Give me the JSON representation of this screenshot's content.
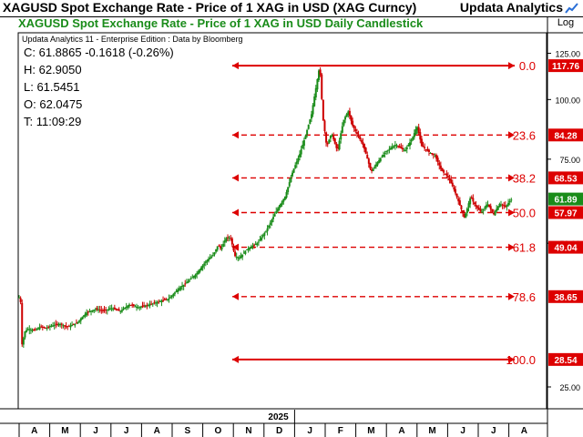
{
  "header": {
    "title": "XAGUSD Spot Exchange Rate - Price of 1 XAG in USD (XAG Curncy)",
    "brand": "Updata Analytics",
    "log_label": "Log"
  },
  "info": {
    "edition": "Updata Analytics 11 - Enterprise Edition : Data by Bloomberg",
    "close": "C: 61.8865  -0.1618 (-0.26%)",
    "high": "H: 62.9050",
    "low": "L: 61.5451",
    "open": "O: 62.0475",
    "time": "T: 11:09:29"
  },
  "colors": {
    "up": "#1a8c1a",
    "down": "#cc0000",
    "fib": "#dd0000",
    "current_tag": "#1a8c1a"
  },
  "chart_data": {
    "type": "candlestick",
    "title": "XAGUSD Spot Exchange Rate - Price of 1 XAG in USD Daily Candlestick",
    "scale": "log",
    "y_ticks": [
      125,
      100,
      75,
      50,
      25
    ],
    "y_tick_labels": [
      "125.00",
      "100.00",
      "75.00",
      "50.00",
      "25.00"
    ],
    "ylim": [
      22.5,
      138
    ],
    "x_month_labels": [
      "A",
      "M",
      "J",
      "J",
      "A",
      "S",
      "O",
      "N",
      "D",
      "J",
      "F",
      "M",
      "A",
      "M",
      "J",
      "J",
      "A"
    ],
    "year_label": "2025",
    "current_price": 61.89,
    "current_price_label": "61.89",
    "price_path": [
      [
        0,
        38.5
      ],
      [
        0.05,
        37.6
      ],
      [
        0.1,
        30.1
      ],
      [
        0.17,
        32.6
      ],
      [
        0.3,
        33.1
      ],
      [
        0.5,
        32.8
      ],
      [
        0.7,
        33.4
      ],
      [
        0.9,
        33.2
      ],
      [
        1.0,
        33.5
      ],
      [
        1.3,
        33.9
      ],
      [
        1.6,
        33.4
      ],
      [
        1.9,
        34.1
      ],
      [
        2.2,
        35.8
      ],
      [
        2.5,
        36.4
      ],
      [
        2.8,
        36.1
      ],
      [
        3.0,
        36.6
      ],
      [
        3.3,
        36.0
      ],
      [
        3.6,
        37.2
      ],
      [
        3.9,
        36.7
      ],
      [
        4.2,
        37.1
      ],
      [
        4.5,
        37.6
      ],
      [
        4.9,
        38.3
      ],
      [
        5.2,
        40.1
      ],
      [
        5.5,
        41.5
      ],
      [
        5.8,
        43.2
      ],
      [
        6.1,
        45.8
      ],
      [
        6.35,
        47.3
      ],
      [
        6.5,
        49.6
      ],
      [
        6.6,
        48.6
      ],
      [
        6.75,
        51.2
      ],
      [
        6.9,
        51.5
      ],
      [
        7.05,
        47.0
      ],
      [
        7.2,
        46.6
      ],
      [
        7.45,
        48.6
      ],
      [
        7.8,
        50.1
      ],
      [
        8.1,
        53.5
      ],
      [
        8.4,
        58.3
      ],
      [
        8.7,
        62.8
      ],
      [
        8.95,
        71.0
      ],
      [
        9.15,
        76.2
      ],
      [
        9.35,
        83.6
      ],
      [
        9.55,
        93.0
      ],
      [
        9.7,
        106.0
      ],
      [
        9.82,
        117.76
      ],
      [
        9.92,
        92.0
      ],
      [
        10.05,
        79.5
      ],
      [
        10.2,
        85.0
      ],
      [
        10.4,
        78.0
      ],
      [
        10.6,
        90.5
      ],
      [
        10.75,
        94.5
      ],
      [
        10.9,
        88.0
      ],
      [
        11.05,
        84.5
      ],
      [
        11.25,
        80.0
      ],
      [
        11.5,
        70.5
      ],
      [
        11.75,
        74.5
      ],
      [
        12.0,
        78.0
      ],
      [
        12.3,
        80.5
      ],
      [
        12.6,
        78.0
      ],
      [
        12.85,
        83.0
      ],
      [
        13.0,
        88.0
      ],
      [
        13.15,
        80.0
      ],
      [
        13.35,
        78.0
      ],
      [
        13.6,
        76.0
      ],
      [
        13.8,
        71.0
      ],
      [
        14.0,
        69.0
      ],
      [
        14.2,
        65.0
      ],
      [
        14.4,
        60.0
      ],
      [
        14.55,
        56.5
      ],
      [
        14.75,
        62.5
      ],
      [
        14.9,
        60.0
      ],
      [
        15.1,
        58.0
      ],
      [
        15.3,
        60.5
      ],
      [
        15.5,
        57.5
      ],
      [
        15.7,
        60.5
      ],
      [
        15.9,
        59.5
      ],
      [
        16.0,
        61.0
      ],
      [
        16.1,
        61.89
      ]
    ],
    "fib_levels": [
      {
        "label": "0.0",
        "price": 117.76,
        "tag": "117.76",
        "style": "solid"
      },
      {
        "label": "23.6",
        "price": 84.28,
        "tag": "84.28",
        "style": "dashed"
      },
      {
        "label": "38.2",
        "price": 68.53,
        "tag": "68.53",
        "style": "dashed"
      },
      {
        "label": "50.0",
        "price": 57.97,
        "tag": "57.97",
        "style": "dashed"
      },
      {
        "label": "61.8",
        "price": 49.04,
        "tag": "49.04",
        "style": "dashed"
      },
      {
        "label": "78.6",
        "price": 38.65,
        "tag": "38.65",
        "style": "dashed"
      },
      {
        "label": "100.0",
        "price": 28.54,
        "tag": "28.54",
        "style": "solid"
      }
    ]
  }
}
